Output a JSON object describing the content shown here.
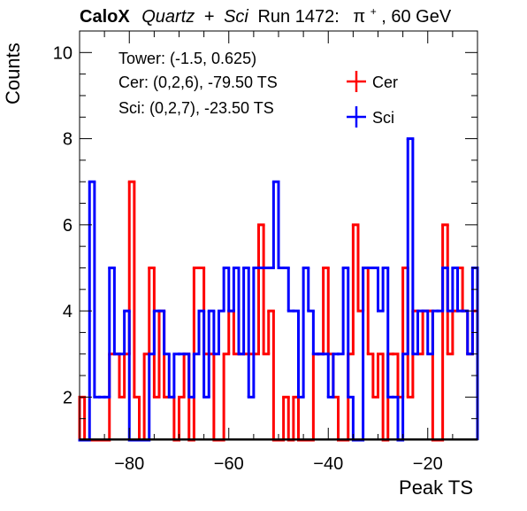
{
  "chart_data": {
    "type": "histogram-step",
    "title_parts": {
      "brand": "CaloX",
      "q": "Quartz",
      "plus": "+",
      "s": "Sci",
      "run": "Run 1472:",
      "particle": "π",
      "charge": "+",
      "energy": ", 60 GeV"
    },
    "xlabel": "Peak TS",
    "ylabel": "Counts",
    "xlim": [
      -90,
      -10
    ],
    "ylim": [
      1,
      10.5
    ],
    "xticks": [
      -80,
      -60,
      -40,
      -20
    ],
    "yticks": [
      2,
      4,
      6,
      8,
      10
    ],
    "xtick_labels": [
      "−80",
      "−60",
      "−40",
      "−20"
    ],
    "ytick_labels": [
      "2",
      "4",
      "6",
      "8",
      "10"
    ],
    "annotations": [
      "Tower: (-1.5, 0.625)",
      "Cer: (0,2,6), -79.50 TS",
      "Sci: (0,2,7), -23.50 TS"
    ],
    "legend_position": "top-right",
    "bin_edges_start": -90,
    "bin_width": 1,
    "series": [
      {
        "name": "Cer",
        "color": "#ff0000",
        "values": [
          2,
          1,
          1,
          1,
          1,
          1,
          3,
          3,
          2,
          3,
          7,
          2,
          1,
          3,
          5,
          2,
          4,
          2,
          2,
          1,
          2,
          3,
          1,
          5,
          5,
          3,
          3,
          1,
          1,
          3,
          4,
          3,
          3,
          3,
          3,
          3,
          6,
          3,
          4,
          1,
          1,
          2,
          1,
          2,
          1,
          1,
          1,
          3,
          3,
          5,
          3,
          2,
          1,
          1,
          3,
          6,
          4,
          5,
          3,
          2,
          3,
          1,
          3,
          3,
          2,
          5,
          2,
          4,
          3,
          4,
          4,
          1,
          1,
          6,
          3,
          4,
          5,
          4,
          3,
          4
        ]
      },
      {
        "name": "Sci",
        "color": "#0000ff",
        "values": [
          1,
          1,
          7,
          2,
          2,
          2,
          5,
          3,
          3,
          4,
          1,
          1,
          1,
          1,
          3,
          4,
          4,
          3,
          2,
          3,
          3,
          3,
          2,
          3,
          4,
          2,
          4,
          3,
          4,
          5,
          4,
          5,
          3,
          5,
          2,
          5,
          5,
          5,
          5,
          7,
          5,
          5,
          4,
          4,
          2,
          5,
          4,
          3,
          3,
          3,
          2,
          3,
          3,
          5,
          2,
          1,
          1,
          5,
          5,
          5,
          4,
          5,
          2,
          2,
          1,
          3,
          8,
          3,
          4,
          4,
          3,
          4,
          4,
          5,
          4,
          5,
          4,
          4,
          3,
          5
        ]
      }
    ]
  }
}
